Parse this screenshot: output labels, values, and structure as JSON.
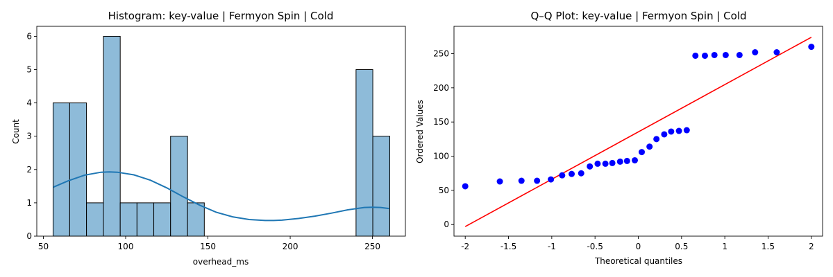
{
  "chart_data": [
    {
      "type": "histogram",
      "title": "Histogram: key-value | Fermyon Spin | Cold",
      "xlabel": "overhead_ms",
      "ylabel": "Count",
      "xlim": [
        46,
        270
      ],
      "ylim": [
        0,
        6.3
      ],
      "xticks": [
        50,
        100,
        150,
        200,
        250
      ],
      "yticks": [
        0,
        1,
        2,
        3,
        4,
        5,
        6
      ],
      "grid": false,
      "bar_color": "#8ebbd9",
      "kde_color": "#1f77b4",
      "bins": [
        {
          "start": 55.9,
          "end": 66.0,
          "count": 4
        },
        {
          "start": 66.0,
          "end": 76.2,
          "count": 4
        },
        {
          "start": 76.2,
          "end": 86.5,
          "count": 1
        },
        {
          "start": 86.5,
          "end": 96.7,
          "count": 6
        },
        {
          "start": 96.7,
          "end": 106.9,
          "count": 1
        },
        {
          "start": 106.9,
          "end": 117.1,
          "count": 1
        },
        {
          "start": 117.1,
          "end": 127.3,
          "count": 1
        },
        {
          "start": 127.3,
          "end": 137.6,
          "count": 3
        },
        {
          "start": 137.6,
          "end": 147.8,
          "count": 1
        },
        {
          "start": 240.0,
          "end": 250.2,
          "count": 5
        },
        {
          "start": 250.2,
          "end": 260.5,
          "count": 3
        }
      ],
      "kde": {
        "x": [
          56,
          65,
          75,
          85,
          90,
          95,
          105,
          115,
          125,
          135,
          145,
          155,
          165,
          175,
          185,
          190,
          195,
          205,
          215,
          225,
          235,
          245,
          250,
          255,
          260
        ],
        "y": [
          1.47,
          1.66,
          1.83,
          1.92,
          1.93,
          1.92,
          1.84,
          1.68,
          1.45,
          1.18,
          0.93,
          0.72,
          0.58,
          0.5,
          0.47,
          0.47,
          0.48,
          0.53,
          0.6,
          0.69,
          0.79,
          0.86,
          0.87,
          0.86,
          0.83
        ]
      }
    },
    {
      "type": "scatter",
      "title": "Q–Q Plot: key-value | Fermyon Spin | Cold",
      "xlabel": "Theoretical quantiles",
      "ylabel": "Ordered Values",
      "xlim": [
        -2.13,
        2.13
      ],
      "ylim": [
        -17,
        290
      ],
      "xticks": [
        -2.0,
        -1.5,
        -1.0,
        -0.5,
        0.0,
        0.5,
        1.0,
        1.5,
        2.0
      ],
      "yticks": [
        0,
        50,
        100,
        150,
        200,
        250
      ],
      "grid": false,
      "point_color": "#0000ff",
      "line_color": "#ff0000",
      "points": {
        "x": [
          -2.0,
          -1.6,
          -1.35,
          -1.17,
          -1.01,
          -0.88,
          -0.77,
          -0.66,
          -0.56,
          -0.47,
          -0.38,
          -0.3,
          -0.21,
          -0.13,
          -0.04,
          0.04,
          0.13,
          0.21,
          0.3,
          0.38,
          0.47,
          0.56,
          0.66,
          0.77,
          0.88,
          1.01,
          1.17,
          1.35,
          1.6,
          2.0
        ],
        "y": [
          56,
          63,
          64,
          64,
          66,
          72,
          74,
          75,
          85,
          89,
          89,
          90,
          92,
          93,
          94,
          106,
          114,
          125,
          132,
          136,
          137,
          138,
          247,
          247,
          248,
          248,
          248,
          252,
          252,
          260
        ]
      },
      "fit_line": {
        "x": [
          -2.0,
          2.0
        ],
        "y": [
          -3,
          274
        ]
      }
    }
  ]
}
